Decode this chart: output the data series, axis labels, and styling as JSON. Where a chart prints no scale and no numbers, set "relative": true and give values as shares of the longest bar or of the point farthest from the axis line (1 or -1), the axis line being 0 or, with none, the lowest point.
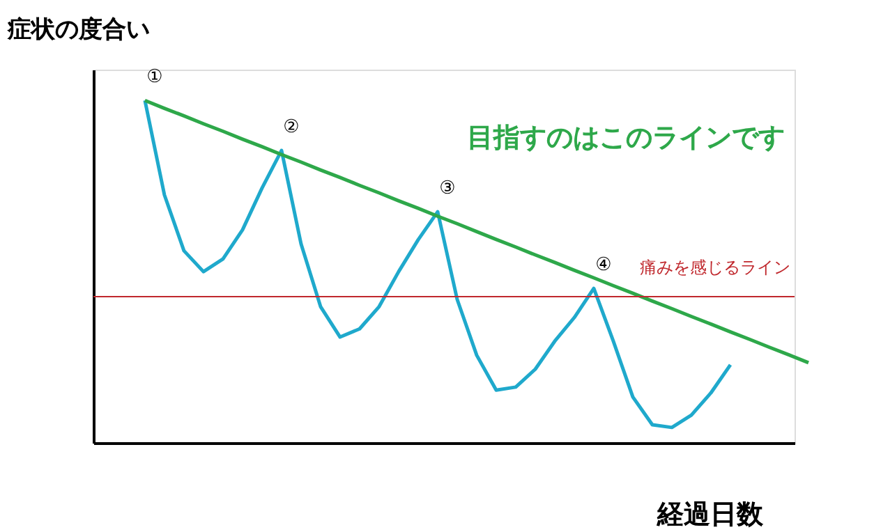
{
  "chart_data": {
    "type": "line",
    "relative": true,
    "ylabel": "症状の度合い",
    "xlabel": "経過日数",
    "categories": [
      null,
      null,
      null,
      null,
      null,
      null,
      null,
      null,
      null,
      null,
      null,
      null,
      null,
      null,
      null,
      null,
      null,
      null,
      null,
      null,
      null,
      null,
      null,
      null,
      null,
      null,
      null,
      null,
      null,
      null,
      null,
      null,
      null,
      null,
      null
    ],
    "series": [
      {
        "color": "#1fa9cc",
        "values": [
          1.0,
          0.724,
          0.561,
          0.5,
          0.537,
          0.622,
          0.744,
          0.854,
          0.581,
          0.398,
          0.309,
          0.333,
          0.398,
          0.5,
          0.593,
          0.675,
          0.419,
          0.256,
          0.154,
          0.163,
          0.215,
          0.297,
          0.366,
          0.451,
          0.297,
          0.134,
          0.053,
          0.045,
          0.081,
          0.146,
          0.228,
          null,
          null,
          null,
          null
        ]
      },
      {
        "color": "#2ea84a",
        "values": [
          1.0,
          0.977,
          0.955,
          0.932,
          0.91,
          0.887,
          0.865,
          0.842,
          0.82,
          0.797,
          0.775,
          0.752,
          0.73,
          0.707,
          0.685,
          0.662,
          0.64,
          0.617,
          0.594,
          0.572,
          0.549,
          0.527,
          0.504,
          0.482,
          0.459,
          0.437,
          0.414,
          0.392,
          0.369,
          0.347,
          0.324,
          0.302,
          0.279,
          0.257,
          0.234
        ]
      }
    ],
    "ref_lines": [
      {
        "axis": "y",
        "value": 0.427,
        "label": "痛みを感じるライン",
        "color": "#c0282d"
      }
    ],
    "annotations": [
      "①",
      "②",
      "③",
      "④",
      "目指すのはこのラインです"
    ],
    "grid": false,
    "marker": "none",
    "line_style": "solid"
  }
}
